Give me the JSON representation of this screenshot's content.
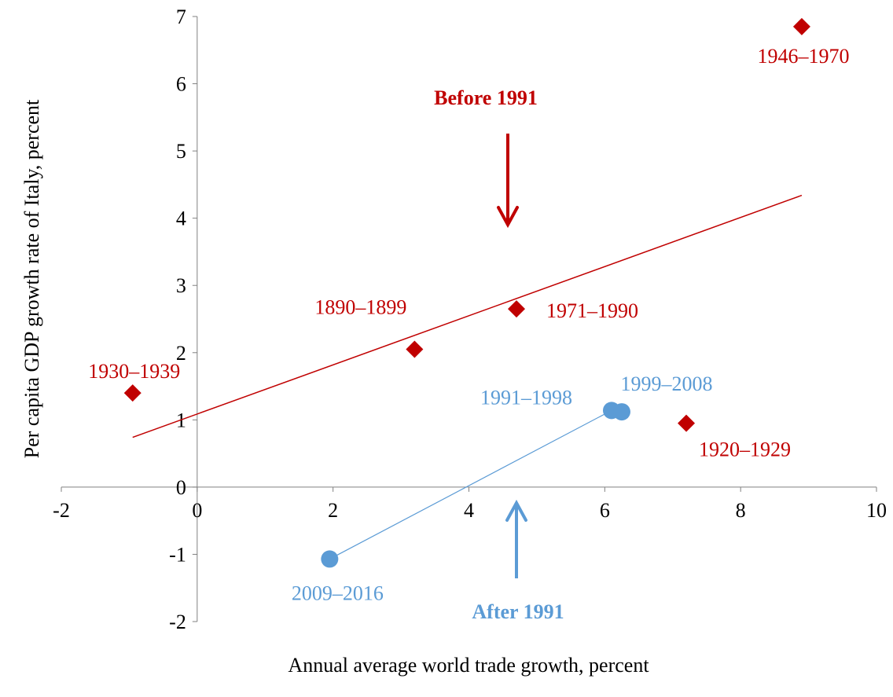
{
  "colors": {
    "before": "#c00000",
    "after": "#5b9bd5",
    "axis": "#808080",
    "text": "#000000"
  },
  "chart_data": {
    "type": "scatter",
    "title": "",
    "xlabel": "Annual average world trade growth, percent",
    "ylabel": "Per capita GDP growth rate of Italy, percent",
    "xlim": [
      -2,
      10
    ],
    "ylim": [
      -2,
      7
    ],
    "x_ticks": [
      -2,
      0,
      2,
      4,
      6,
      8,
      10
    ],
    "y_ticks": [
      -2,
      -1,
      0,
      1,
      2,
      3,
      4,
      5,
      6,
      7
    ],
    "grid": false,
    "legend": "none",
    "series": [
      {
        "key": "before",
        "marker": "diamond",
        "points": [
          {
            "label": "1930–1939",
            "x": -0.95,
            "y": 1.4
          },
          {
            "label": "1890–1899",
            "x": 3.2,
            "y": 2.05
          },
          {
            "label": "1971–1990",
            "x": 4.7,
            "y": 2.65
          },
          {
            "label": "1920–1929",
            "x": 7.2,
            "y": 0.95
          },
          {
            "label": "1946–1970",
            "x": 8.9,
            "y": 6.85
          }
        ],
        "trendline": {
          "x": [
            -0.95,
            8.9
          ],
          "y": [
            0.74,
            4.34
          ]
        }
      },
      {
        "key": "after",
        "marker": "circle",
        "points": [
          {
            "label": "2009–2016",
            "x": 1.95,
            "y": -1.07
          },
          {
            "label": "1991–1998",
            "x": 6.1,
            "y": 1.14
          },
          {
            "label": "1999–2008",
            "x": 6.25,
            "y": 1.12
          }
        ],
        "trendline": {
          "x": [
            1.95,
            6.1
          ],
          "y": [
            -1.07,
            1.14
          ]
        }
      }
    ],
    "annotations": [
      {
        "key": "before",
        "text": "Before 1991"
      },
      {
        "key": "after",
        "text": "After 1991"
      }
    ]
  }
}
